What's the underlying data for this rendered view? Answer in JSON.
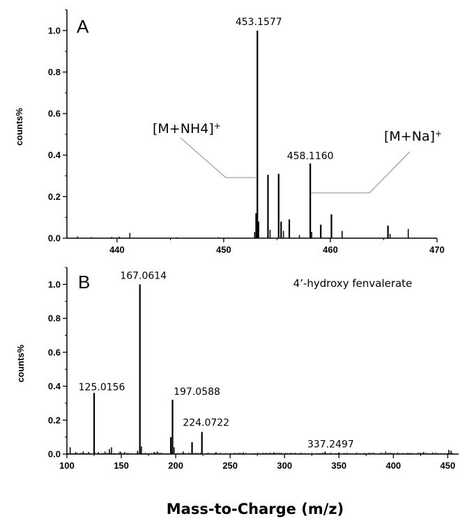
{
  "chart_data": [
    {
      "type": "bar",
      "panel_label": "A",
      "ylabel": "counts%",
      "xlabel": "",
      "xlim": [
        435.3,
        470
      ],
      "ylim": [
        0,
        1.1
      ],
      "xticks": [
        440,
        450,
        460,
        470
      ],
      "yticks": [
        0.0,
        0.2,
        0.4,
        0.6,
        0.8,
        1.0
      ],
      "ytick_labels": [
        "0.0",
        "0.2",
        "0.4",
        "0.6",
        "0.8",
        "1.0"
      ],
      "peaks": [
        {
          "x": 436.3,
          "y": 0.008
        },
        {
          "x": 437.6,
          "y": 0.005
        },
        {
          "x": 439.5,
          "y": 0.006
        },
        {
          "x": 440.2,
          "y": 0.007
        },
        {
          "x": 441.2,
          "y": 0.025
        },
        {
          "x": 445.6,
          "y": 0.004
        },
        {
          "x": 449.5,
          "y": 0.004
        },
        {
          "x": 452.9,
          "y": 0.03
        },
        {
          "x": 453.04,
          "y": 0.12
        },
        {
          "x": 453.1577,
          "y": 1.0
        },
        {
          "x": 453.26,
          "y": 0.08
        },
        {
          "x": 454.15,
          "y": 0.305
        },
        {
          "x": 454.35,
          "y": 0.04
        },
        {
          "x": 455.15,
          "y": 0.31
        },
        {
          "x": 455.38,
          "y": 0.08
        },
        {
          "x": 455.6,
          "y": 0.035
        },
        {
          "x": 456.15,
          "y": 0.09
        },
        {
          "x": 457.1,
          "y": 0.015
        },
        {
          "x": 458.116,
          "y": 0.36
        },
        {
          "x": 458.25,
          "y": 0.03
        },
        {
          "x": 459.1,
          "y": 0.065
        },
        {
          "x": 460.1,
          "y": 0.115
        },
        {
          "x": 461.1,
          "y": 0.035
        },
        {
          "x": 465.4,
          "y": 0.06
        },
        {
          "x": 465.6,
          "y": 0.02
        },
        {
          "x": 467.3,
          "y": 0.045
        }
      ],
      "annotations": [
        {
          "text": "453.1577",
          "x": 453.1577,
          "y": 1.0
        },
        {
          "text": "458.1160",
          "x": 458.116,
          "y": 0.36
        },
        {
          "text": "[M+NH4]",
          "superscript": "+",
          "target_x": 453.1577
        },
        {
          "text": "[M+Na]",
          "superscript": "+",
          "target_x": 458.116
        }
      ]
    },
    {
      "type": "bar",
      "panel_label": "B",
      "compound_name": "4’-hydroxy fenvalerate",
      "ylabel": "counts%",
      "xlabel": "Mass-to-Charge (m/z)",
      "xlim": [
        100,
        460
      ],
      "ylim": [
        0,
        1.1
      ],
      "xticks": [
        100,
        150,
        200,
        250,
        300,
        350,
        400,
        450
      ],
      "yticks": [
        0.0,
        0.2,
        0.4,
        0.6,
        0.8,
        1.0
      ],
      "ytick_labels": [
        "0.0",
        "0.2",
        "0.4",
        "0.6",
        "0.8",
        "1.0"
      ],
      "peaks": [
        {
          "x": 103,
          "y": 0.04
        },
        {
          "x": 108,
          "y": 0.012
        },
        {
          "x": 115,
          "y": 0.015
        },
        {
          "x": 120,
          "y": 0.012
        },
        {
          "x": 125.0156,
          "y": 0.36
        },
        {
          "x": 129,
          "y": 0.012
        },
        {
          "x": 135,
          "y": 0.015
        },
        {
          "x": 139,
          "y": 0.03
        },
        {
          "x": 141,
          "y": 0.04
        },
        {
          "x": 149,
          "y": 0.015
        },
        {
          "x": 153,
          "y": 0.012
        },
        {
          "x": 165,
          "y": 0.02
        },
        {
          "x": 167.0614,
          "y": 1.0
        },
        {
          "x": 168.5,
          "y": 0.045
        },
        {
          "x": 180,
          "y": 0.012
        },
        {
          "x": 183,
          "y": 0.015
        },
        {
          "x": 195.5,
          "y": 0.1
        },
        {
          "x": 197.0588,
          "y": 0.32
        },
        {
          "x": 198.5,
          "y": 0.04
        },
        {
          "x": 207,
          "y": 0.015
        },
        {
          "x": 215,
          "y": 0.07
        },
        {
          "x": 224.0722,
          "y": 0.13
        },
        {
          "x": 237,
          "y": 0.012
        },
        {
          "x": 262,
          "y": 0.01
        },
        {
          "x": 290,
          "y": 0.01
        },
        {
          "x": 337.2497,
          "y": 0.015
        },
        {
          "x": 350,
          "y": 0.01
        },
        {
          "x": 393,
          "y": 0.015
        },
        {
          "x": 428,
          "y": 0.012
        },
        {
          "x": 436,
          "y": 0.01
        },
        {
          "x": 451,
          "y": 0.025
        },
        {
          "x": 453,
          "y": 0.02
        }
      ],
      "annotations": [
        {
          "text": "167.0614",
          "x": 167.0614,
          "y": 1.0
        },
        {
          "text": "125.0156",
          "x": 125.0156,
          "y": 0.36
        },
        {
          "text": "197.0588",
          "x": 197.0588,
          "y": 0.32
        },
        {
          "text": "224.0722",
          "x": 224.0722,
          "y": 0.13
        },
        {
          "text": "337.2497",
          "x": 337.2497,
          "y": 0.015
        }
      ]
    }
  ]
}
